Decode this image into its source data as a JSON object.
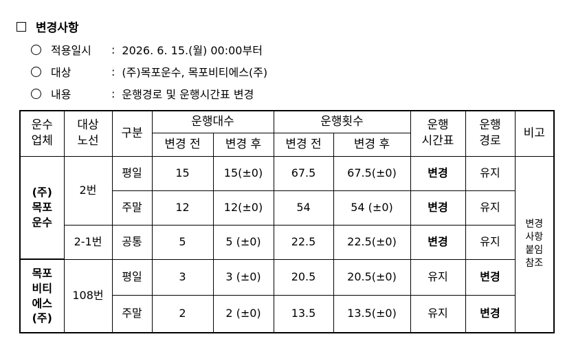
{
  "header": {
    "title": "변경사항"
  },
  "items": [
    {
      "label": "적용일시",
      "separator": ":",
      "value": "2026. 6. 15.(월) 00:00부터"
    },
    {
      "label": "대상",
      "separator": ":",
      "value": "(주)목포운수, 목포비티에스(주)"
    },
    {
      "label": "내용",
      "separator": ":",
      "value": "운행경로 및 운행시간표 변경"
    }
  ],
  "table": {
    "head": [
      "운수\n업체",
      "대상\n노선",
      "구분",
      "운행대수",
      "운행횟수",
      "운행\n시간표",
      "운행\n경로",
      "비고"
    ],
    "subhead": [
      "변경 전",
      "변경 후",
      "변경 전",
      "변경 후"
    ],
    "rows": [
      [
        "(주)\n목포\n운수",
        "2번",
        "평일",
        15,
        "15(±0)",
        67.5,
        "67.5(±0)",
        "변경",
        "유지",
        "변경\n사항\n붙임\n참조"
      ],
      [
        "주말",
        12,
        "12(±0)",
        54,
        "54 (±0)",
        "변경",
        "유지"
      ],
      [
        "2-1번",
        "공통",
        5,
        "5 (±0)",
        22.5,
        "22.5(±0)",
        "변경",
        "유지"
      ],
      [
        "목포\n비티\n에스\n(주)",
        "108번",
        "평일",
        3,
        "3 (±0)",
        20.5,
        "20.5(±0)",
        "유지",
        "변경"
      ],
      [
        "주말",
        2,
        "2 (±0)",
        13.5,
        "13.5(±0)",
        "유지",
        "변경"
      ]
    ]
  }
}
